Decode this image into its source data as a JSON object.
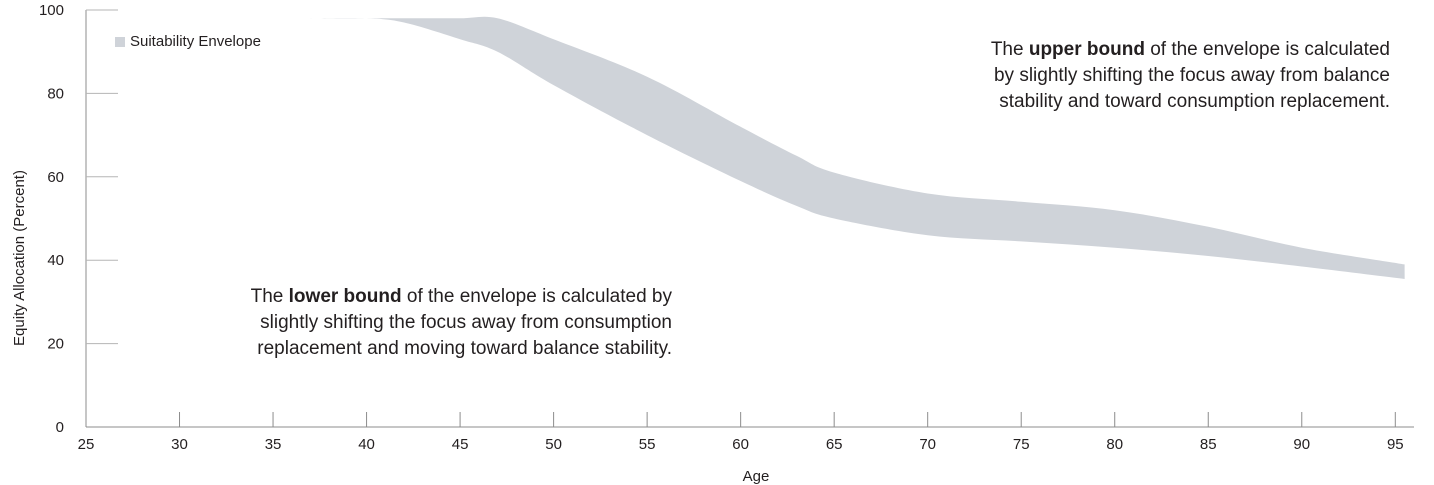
{
  "chart_data": {
    "type": "area",
    "xlabel": "Age",
    "ylabel": "Equity Allocation (Percent)",
    "xlim": [
      25,
      96
    ],
    "ylim": [
      0,
      100
    ],
    "x_ticks": [
      25,
      30,
      35,
      40,
      45,
      50,
      55,
      60,
      65,
      70,
      75,
      80,
      85,
      90,
      95
    ],
    "y_ticks": [
      0,
      20,
      40,
      60,
      80,
      100
    ],
    "grid": false,
    "legend": {
      "label": "Suitability Envelope",
      "position": "top-left"
    },
    "series": [
      {
        "name": "Suitability Envelope",
        "color": "#cfd3d9",
        "x": [
          37,
          40,
          42,
          45,
          47,
          50,
          55,
          60,
          63,
          65,
          70,
          75,
          80,
          85,
          90,
          95.5
        ],
        "upper": [
          98,
          98,
          98,
          98,
          98,
          93,
          84,
          72,
          65,
          61,
          56,
          54,
          52,
          48,
          43,
          39
        ],
        "lower": [
          98,
          98,
          97,
          93,
          90,
          82,
          70,
          59,
          53,
          50,
          46,
          44.5,
          43,
          41,
          38.5,
          35.5
        ]
      }
    ],
    "annotations": {
      "upper": {
        "prefix": "The ",
        "bold": "upper bound",
        "rest_line1": " of the envelope is calculated",
        "line2": "by slightly shifting the focus away from balance",
        "line3": "stability and toward consumption replacement."
      },
      "lower": {
        "prefix": "The ",
        "bold": "lower bound",
        "rest_line1": " of the envelope is calculated by",
        "line2": "slightly shifting the focus away from consumption",
        "line3": "replacement and moving toward balance stability."
      }
    }
  }
}
